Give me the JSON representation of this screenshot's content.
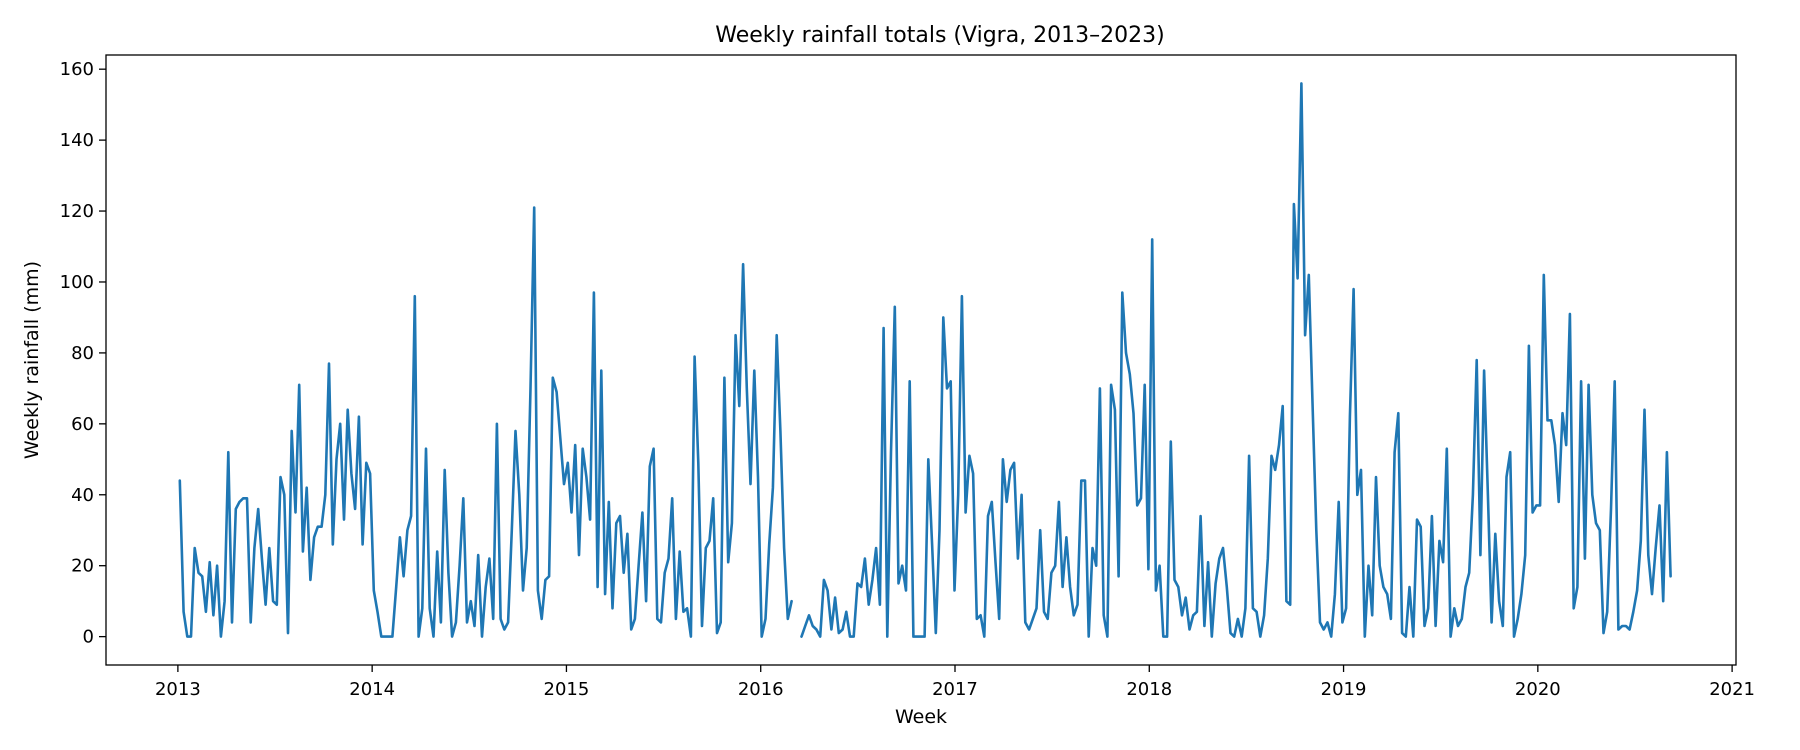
{
  "chart_data": {
    "type": "line",
    "title": "Weekly rainfall totals (Vigra, 2013–2023)",
    "xlabel": "Week",
    "ylabel": "Weekly rainfall (mm)",
    "xlim": [
      2012.63,
      2021.02
    ],
    "ylim": [
      -8,
      164
    ],
    "x_ticks": [
      2013,
      2014,
      2015,
      2016,
      2017,
      2018,
      2019,
      2020,
      2021
    ],
    "x_tick_labels": [
      "2013",
      "2014",
      "2015",
      "2016",
      "2017",
      "2018",
      "2019",
      "2020",
      "2021"
    ],
    "y_ticks": [
      0,
      20,
      40,
      60,
      80,
      100,
      120,
      140,
      160
    ],
    "y_tick_labels": [
      "0",
      "20",
      "40",
      "60",
      "80",
      "100",
      "120",
      "140",
      "160"
    ],
    "grid": false,
    "color": "#1f77b4",
    "series": [
      {
        "x_start": 2013.01,
        "x_step": 0.0192,
        "values": [
          44,
          7,
          0,
          0,
          25,
          18,
          17,
          7,
          21,
          6,
          20,
          0,
          10,
          52,
          4,
          36,
          38,
          39,
          39,
          4,
          25,
          36,
          22,
          9,
          25,
          10,
          9,
          45,
          40,
          1,
          58,
          35,
          71,
          24,
          42,
          16,
          28,
          31,
          31,
          40,
          77,
          26,
          50,
          60,
          33,
          64,
          46,
          36,
          62,
          26,
          49,
          46,
          13,
          7,
          0,
          0,
          0,
          0,
          14,
          28,
          17,
          30,
          34,
          96,
          0,
          8,
          53,
          8,
          0,
          24,
          4,
          47,
          18,
          0,
          4,
          20,
          39,
          4,
          10,
          3,
          23,
          0,
          14,
          22,
          5,
          60,
          5,
          2,
          4,
          30,
          58,
          40,
          13,
          25,
          70,
          121,
          13,
          5,
          16,
          17,
          73,
          69,
          56,
          43,
          49,
          35,
          54,
          23,
          53,
          45,
          33,
          97,
          14,
          75,
          12,
          38,
          8,
          32,
          34,
          18,
          29,
          2,
          5,
          20,
          35,
          10,
          48,
          53,
          5,
          4,
          18,
          22,
          39,
          5,
          24,
          7,
          8,
          0,
          79,
          49,
          3,
          25,
          27,
          39,
          1,
          4,
          73,
          21,
          32,
          85,
          65,
          105,
          70,
          43,
          75,
          45,
          0,
          5,
          26,
          42,
          85,
          58,
          25,
          5,
          10
        ]
      },
      {
        "x_start": 2016.21,
        "x_step": 0.0192,
        "values": [
          0,
          3,
          6,
          3,
          2,
          0,
          16,
          13,
          2,
          11,
          1,
          2,
          7,
          0,
          0,
          15,
          14,
          22,
          9,
          16,
          25,
          9,
          87,
          0,
          52,
          93,
          15,
          20,
          13,
          72,
          0,
          0,
          0,
          0,
          50,
          26,
          1,
          30,
          90,
          70,
          72,
          13,
          40,
          96,
          35,
          51,
          46,
          5,
          6,
          0,
          34,
          38,
          21,
          5,
          50,
          38,
          47,
          49,
          22,
          40,
          4,
          2,
          5,
          8,
          30,
          7,
          5,
          18,
          20,
          38,
          14,
          28,
          14,
          6,
          9,
          44,
          44,
          0,
          25,
          20,
          70,
          6,
          0,
          71,
          64,
          17,
          97,
          80,
          74,
          63,
          37,
          39,
          71,
          19,
          112,
          13,
          20,
          0,
          0,
          55,
          16,
          14,
          6,
          11,
          2,
          6,
          7,
          34,
          3,
          21,
          0,
          15,
          22,
          25,
          14,
          1,
          0,
          5,
          0,
          8,
          51,
          8,
          7,
          0,
          6,
          22,
          51,
          47,
          54,
          65,
          10,
          9,
          122,
          101,
          156,
          85,
          102,
          66,
          30,
          4,
          2,
          4,
          0,
          12,
          38,
          4,
          8,
          62,
          98,
          40,
          47,
          0,
          20,
          6,
          45,
          20,
          14,
          12,
          5,
          52,
          63,
          1,
          0,
          14,
          0,
          33,
          31,
          3,
          8,
          34,
          3,
          27,
          21,
          53,
          0,
          8,
          3,
          5,
          14,
          18,
          40,
          78,
          23,
          75,
          40,
          4,
          29,
          10,
          3,
          45,
          52,
          0,
          5,
          12,
          23,
          82,
          35,
          37,
          37,
          102,
          61,
          61,
          54,
          38,
          63,
          54,
          91,
          8,
          14,
          72,
          22,
          71,
          40,
          32,
          30,
          1,
          7,
          36,
          72,
          2,
          3,
          3,
          2,
          7,
          13,
          27,
          64,
          23,
          12,
          25,
          37,
          10,
          52,
          17
        ]
      }
    ]
  }
}
